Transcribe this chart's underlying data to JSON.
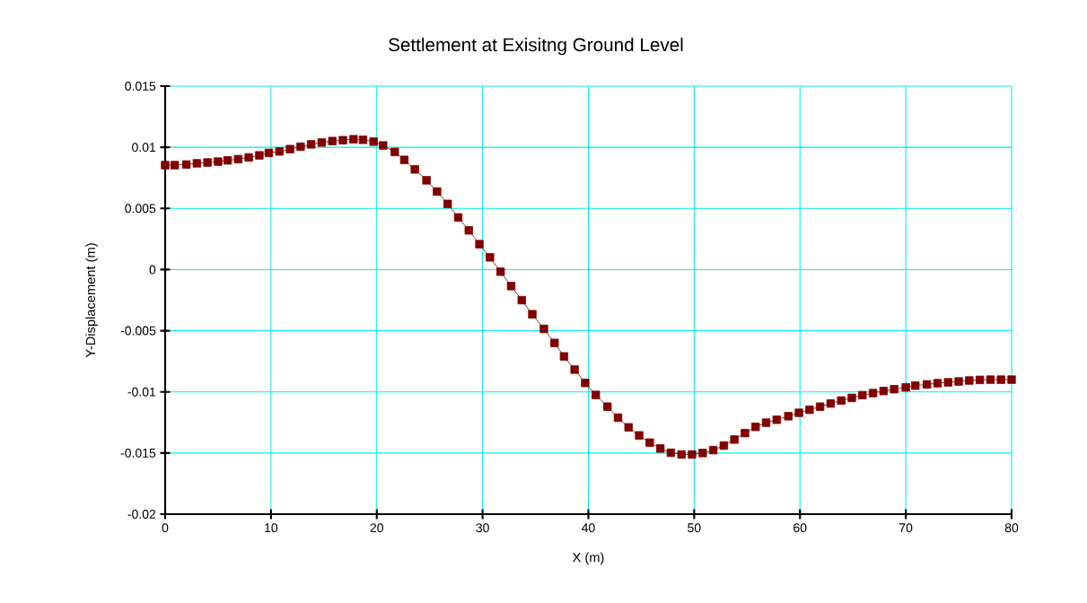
{
  "chart_data": {
    "type": "line",
    "title": "Settlement at Exisitng Ground Level",
    "xlabel": "X (m)",
    "ylabel": "Y-Displacement (m)",
    "xlim": [
      0,
      80
    ],
    "ylim": [
      -0.02,
      0.015
    ],
    "xticks": [
      0,
      10,
      20,
      30,
      40,
      50,
      60,
      70,
      80
    ],
    "yticks": [
      -0.02,
      -0.015,
      -0.01,
      -0.005,
      0,
      0.005,
      0.01,
      0.015
    ],
    "grid": true,
    "marker": "square",
    "line_style": "solid",
    "series": [
      {
        "color": "#800000",
        "x": [
          0,
          0.9,
          2.0,
          3.0,
          4.0,
          5.0,
          5.9,
          6.9,
          7.9,
          8.9,
          9.8,
          10.8,
          11.8,
          12.8,
          13.8,
          14.8,
          15.8,
          16.8,
          17.8,
          18.7,
          19.7,
          20.6,
          21.7,
          22.6,
          23.6,
          24.7,
          25.7,
          26.7,
          27.7,
          28.7,
          29.7,
          30.7,
          31.7,
          32.7,
          33.7,
          34.7,
          35.8,
          36.8,
          37.7,
          38.7,
          39.7,
          40.7,
          41.8,
          42.8,
          43.8,
          44.8,
          45.8,
          46.8,
          47.8,
          48.8,
          49.8,
          50.8,
          51.8,
          52.8,
          53.8,
          54.8,
          55.8,
          56.8,
          57.8,
          58.9,
          59.9,
          60.9,
          61.9,
          62.9,
          63.9,
          64.9,
          65.9,
          66.9,
          67.9,
          68.9,
          70.0,
          70.9,
          72.0,
          73.0,
          74.0,
          75.0,
          76.0,
          77.0,
          78.0,
          79.0,
          80.0
        ],
        "values": [
          0.00854,
          0.00854,
          0.00859,
          0.00869,
          0.00876,
          0.00883,
          0.00893,
          0.00903,
          0.00917,
          0.00934,
          0.00954,
          0.00966,
          0.00985,
          0.01005,
          0.01024,
          0.01039,
          0.01051,
          0.01058,
          0.01066,
          0.01061,
          0.01046,
          0.01015,
          0.00962,
          0.00897,
          0.00819,
          0.0073,
          0.00638,
          0.00537,
          0.00426,
          0.00321,
          0.00208,
          0.001,
          -0.00017,
          -0.00135,
          -0.0025,
          -0.00365,
          -0.00485,
          -0.006,
          -0.0071,
          -0.00818,
          -0.00927,
          -0.01025,
          -0.01121,
          -0.01211,
          -0.0129,
          -0.01356,
          -0.01415,
          -0.01463,
          -0.01498,
          -0.01512,
          -0.01512,
          -0.015,
          -0.01476,
          -0.01439,
          -0.0139,
          -0.01337,
          -0.01286,
          -0.01252,
          -0.01228,
          -0.01199,
          -0.01171,
          -0.01146,
          -0.01121,
          -0.01095,
          -0.01071,
          -0.01049,
          -0.01027,
          -0.0101,
          -0.00993,
          -0.00978,
          -0.00963,
          -0.00949,
          -0.00939,
          -0.00929,
          -0.00922,
          -0.00915,
          -0.00907,
          -0.00902,
          -0.009,
          -0.009,
          -0.009
        ]
      }
    ]
  }
}
